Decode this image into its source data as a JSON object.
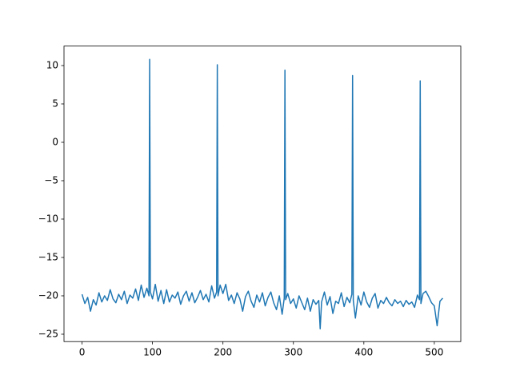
{
  "chart_data": {
    "type": "line",
    "x": [
      0,
      4,
      8,
      12,
      16,
      20,
      24,
      28,
      32,
      36,
      40,
      44,
      48,
      52,
      56,
      60,
      64,
      68,
      72,
      76,
      80,
      84,
      88,
      92,
      95,
      96,
      97,
      100,
      104,
      108,
      112,
      116,
      120,
      124,
      128,
      132,
      136,
      140,
      144,
      148,
      152,
      156,
      160,
      164,
      168,
      172,
      176,
      180,
      184,
      188,
      191,
      192,
      193,
      196,
      200,
      204,
      208,
      212,
      216,
      220,
      224,
      228,
      232,
      236,
      240,
      244,
      248,
      252,
      256,
      260,
      264,
      268,
      272,
      276,
      280,
      284,
      287,
      288,
      289,
      292,
      296,
      300,
      304,
      308,
      312,
      316,
      320,
      324,
      328,
      332,
      336,
      338,
      340,
      344,
      348,
      352,
      356,
      360,
      364,
      368,
      372,
      376,
      380,
      383,
      384,
      385,
      388,
      392,
      396,
      400,
      404,
      408,
      412,
      416,
      420,
      424,
      428,
      432,
      436,
      440,
      444,
      448,
      452,
      456,
      460,
      464,
      468,
      472,
      476,
      479,
      480,
      481,
      484,
      488,
      492,
      496,
      500,
      504,
      508,
      512
    ],
    "series": [
      {
        "color": "#1f77b4",
        "values": [
          -19.8,
          -21.0,
          -20.2,
          -22.0,
          -20.5,
          -21.2,
          -19.6,
          -20.8,
          -20.0,
          -20.6,
          -19.2,
          -20.4,
          -20.9,
          -19.8,
          -20.5,
          -19.4,
          -21.0,
          -19.9,
          -20.3,
          -19.1,
          -20.6,
          -18.6,
          -20.2,
          -19.0,
          -20.0,
          10.8,
          -19.5,
          -20.4,
          -18.5,
          -20.7,
          -19.3,
          -21.0,
          -19.2,
          -20.8,
          -19.9,
          -20.3,
          -19.5,
          -21.1,
          -20.0,
          -19.4,
          -20.7,
          -19.6,
          -20.9,
          -20.2,
          -19.3,
          -20.5,
          -19.8,
          -20.8,
          -18.7,
          -20.3,
          -19.5,
          10.1,
          -20.0,
          -18.6,
          -19.7,
          -18.5,
          -20.6,
          -19.9,
          -21.0,
          -19.6,
          -20.4,
          -22.0,
          -20.1,
          -19.4,
          -20.7,
          -21.5,
          -19.9,
          -20.8,
          -19.6,
          -21.3,
          -20.2,
          -19.5,
          -20.9,
          -21.8,
          -20.0,
          -22.4,
          -20.3,
          9.4,
          -20.5,
          -19.7,
          -21.0,
          -20.4,
          -21.6,
          -20.0,
          -20.9,
          -21.8,
          -20.3,
          -22.0,
          -20.5,
          -21.1,
          -20.6,
          -24.3,
          -20.8,
          -19.5,
          -21.2,
          -20.1,
          -22.3,
          -20.7,
          -21.0,
          -19.6,
          -21.4,
          -20.2,
          -20.9,
          -19.8,
          8.7,
          -20.6,
          -22.9,
          -20.0,
          -21.2,
          -19.5,
          -20.8,
          -21.5,
          -20.3,
          -19.7,
          -21.6,
          -20.6,
          -21.0,
          -20.2,
          -20.9,
          -21.3,
          -20.5,
          -21.0,
          -20.7,
          -21.4,
          -20.6,
          -21.1,
          -20.8,
          -21.5,
          -19.9,
          -20.5,
          8.0,
          -21.0,
          -19.7,
          -19.4,
          -20.1,
          -20.9,
          -21.3,
          -23.9,
          -20.7,
          -20.3
        ]
      }
    ],
    "xlim": [
      -25.6,
      537.6
    ],
    "ylim": [
      -25.96,
      12.54
    ],
    "xticks": [
      0,
      100,
      200,
      300,
      400,
      500
    ],
    "yticks": [
      {
        "value": -25,
        "label": "−25"
      },
      {
        "value": -20,
        "label": "−20"
      },
      {
        "value": -15,
        "label": "−15"
      },
      {
        "value": -10,
        "label": "−10"
      },
      {
        "value": -5,
        "label": "−5"
      },
      0,
      5,
      10
    ]
  }
}
